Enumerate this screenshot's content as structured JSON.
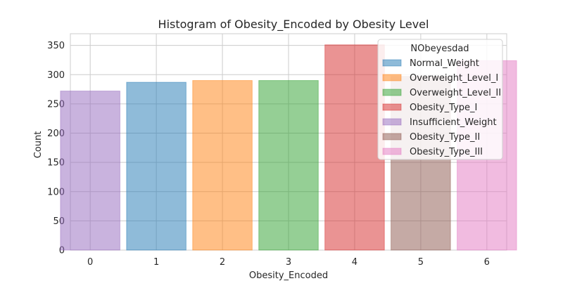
{
  "chart_data": {
    "type": "bar",
    "title": "Histogram of Obesity_Encoded by Obesity Level",
    "xlabel": "Obesity_Encoded",
    "ylabel": "Count",
    "x_ticks": [
      "0",
      "1",
      "2",
      "3",
      "4",
      "5",
      "6"
    ],
    "y_ticks": [
      0,
      50,
      100,
      150,
      200,
      250,
      300,
      350
    ],
    "ylim": [
      0,
      370
    ],
    "grid": true,
    "legend": {
      "title": "NObeyesdad",
      "placement": "top-right"
    },
    "series": [
      {
        "name": "Normal_Weight",
        "x": 1,
        "value": 287,
        "color": "#1f77b4"
      },
      {
        "name": "Overweight_Level_I",
        "x": 2,
        "value": 290,
        "color": "#ff7f0e"
      },
      {
        "name": "Overweight_Level_II",
        "x": 3,
        "value": 290,
        "color": "#2ca02c"
      },
      {
        "name": "Obesity_Type_I",
        "x": 4,
        "value": 351,
        "color": "#d62728"
      },
      {
        "name": "Insufficient_Weight",
        "x": 0,
        "value": 272,
        "color": "#9467bd"
      },
      {
        "name": "Obesity_Type_II",
        "x": 5,
        "value": 297,
        "color": "#8c564b"
      },
      {
        "name": "Obesity_Type_III",
        "x": 6,
        "value": 324,
        "color": "#e377c2"
      }
    ]
  }
}
